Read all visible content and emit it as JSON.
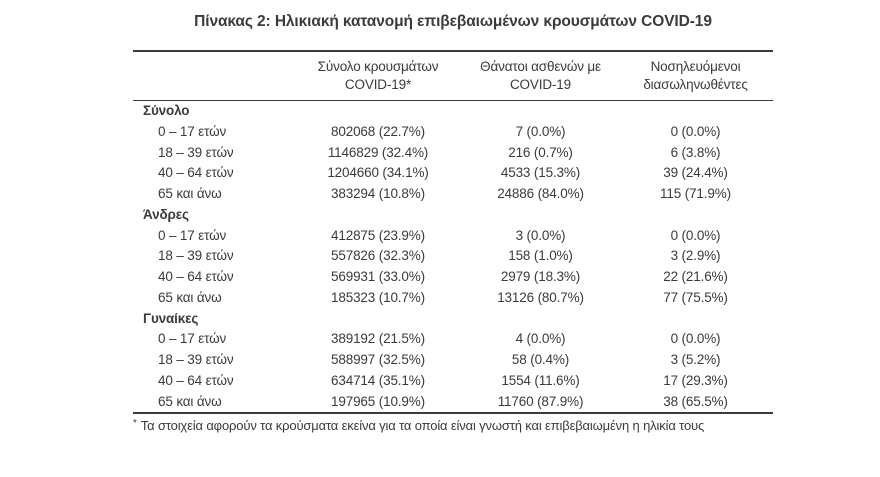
{
  "title": "Πίνακας 2: Ηλικιακή κατανομή επιβεβαιωμένων κρουσμάτων COVID-19",
  "colors": {
    "text": "#3b3b3b",
    "border": "#3b3b3b",
    "background": "#ffffff"
  },
  "table": {
    "columns": [
      {
        "id": "cases",
        "line1": "Σύνολο κρουσμάτων",
        "line2": "COVID-19*"
      },
      {
        "id": "deaths",
        "line1": "Θάνατοι ασθενών με",
        "line2": "COVID-19"
      },
      {
        "id": "intubated",
        "line1": "Νοσηλευόμενοι",
        "line2": "διασωληνωθέντες"
      }
    ],
    "groups": [
      {
        "label": "Σύνολο",
        "rows": [
          {
            "label": "0 – 17 ετών",
            "cases": "802068 (22.7%)",
            "deaths": "7 (0.0%)",
            "intubated": "0 (0.0%)"
          },
          {
            "label": "18 – 39 ετών",
            "cases": "1146829 (32.4%)",
            "deaths": "216 (0.7%)",
            "intubated": "6 (3.8%)"
          },
          {
            "label": "40 – 64 ετών",
            "cases": "1204660 (34.1%)",
            "deaths": "4533 (15.3%)",
            "intubated": "39 (24.4%)"
          },
          {
            "label": "65 και άνω",
            "cases": "383294 (10.8%)",
            "deaths": "24886 (84.0%)",
            "intubated": "115 (71.9%)"
          }
        ]
      },
      {
        "label": "Άνδρες",
        "rows": [
          {
            "label": "0 – 17 ετών",
            "cases": "412875 (23.9%)",
            "deaths": "3 (0.0%)",
            "intubated": "0 (0.0%)"
          },
          {
            "label": "18 – 39 ετών",
            "cases": "557826 (32.3%)",
            "deaths": "158 (1.0%)",
            "intubated": "3 (2.9%)"
          },
          {
            "label": "40 – 64 ετών",
            "cases": "569931 (33.0%)",
            "deaths": "2979 (18.3%)",
            "intubated": "22 (21.6%)"
          },
          {
            "label": "65 και άνω",
            "cases": "185323 (10.7%)",
            "deaths": "13126 (80.7%)",
            "intubated": "77 (75.5%)"
          }
        ]
      },
      {
        "label": "Γυναίκες",
        "rows": [
          {
            "label": "0 – 17 ετών",
            "cases": "389192 (21.5%)",
            "deaths": "4 (0.0%)",
            "intubated": "0 (0.0%)"
          },
          {
            "label": "18 – 39 ετών",
            "cases": "588997 (32.5%)",
            "deaths": "58 (0.4%)",
            "intubated": "3 (5.2%)"
          },
          {
            "label": "40 – 64 ετών",
            "cases": "634714 (35.1%)",
            "deaths": "1554 (11.6%)",
            "intubated": "17 (29.3%)"
          },
          {
            "label": "65 και άνω",
            "cases": "197965 (10.9%)",
            "deaths": "11760 (87.9%)",
            "intubated": "38 (65.5%)"
          }
        ]
      }
    ]
  },
  "footnote": {
    "marker": "*",
    "text": "Τα στοιχεία αφορούν τα κρούσματα εκείνα για τα οποία είναι γνωστή και επιβεβαιωμένη η ηλικία τους"
  }
}
